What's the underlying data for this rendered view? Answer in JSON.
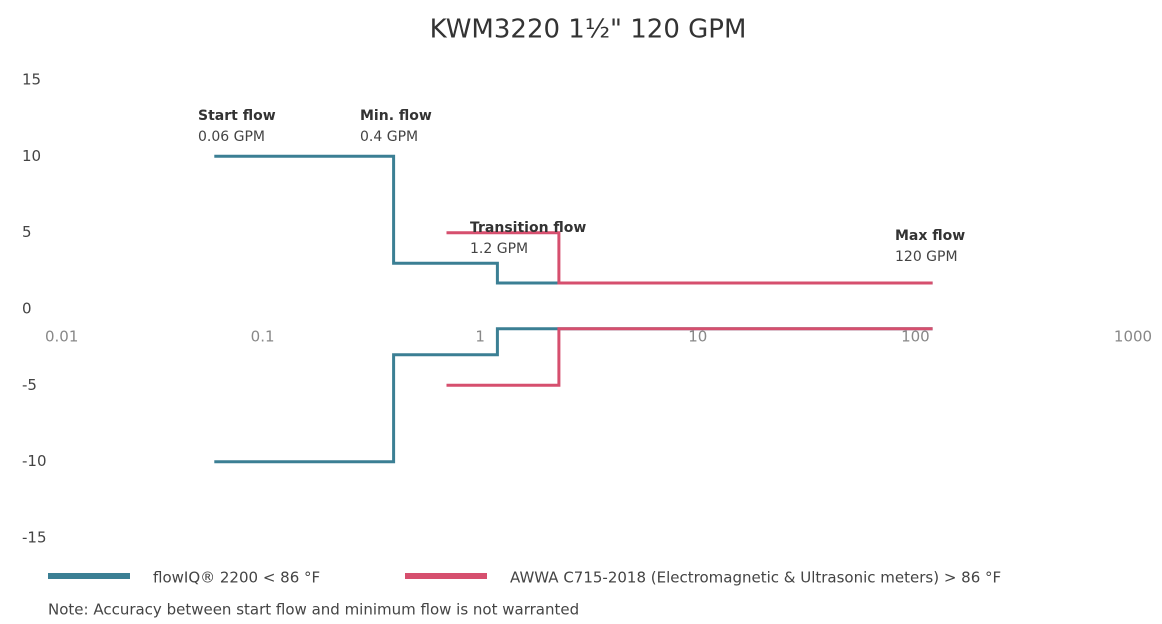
{
  "chart_data": {
    "type": "line",
    "title": "KWM3220 1½\" 120 GPM",
    "xscale": "log",
    "xlim": [
      0.01,
      1000
    ],
    "xticks": [
      {
        "value": 0.01,
        "label": "0.01"
      },
      0.1,
      1,
      10,
      100,
      1000
    ],
    "ylim": [
      -15,
      15
    ],
    "yticks": [
      15,
      10,
      5,
      0,
      -5,
      -10,
      -15
    ],
    "grid": false,
    "series": [
      {
        "name": "flowIQ® 2200 < 86 °F",
        "color": "#3b7f94",
        "x": [
          0.06,
          0.4,
          0.4,
          1.2,
          1.2,
          120,
          null,
          0.06,
          0.4,
          0.4,
          1.2,
          1.2,
          120
        ],
        "values": [
          10,
          10,
          3,
          3,
          1.7,
          1.7,
          null,
          -10,
          -10,
          -3,
          -3,
          -1.3,
          -1.3
        ]
      },
      {
        "name": "AWWA C715-2018 (Electromagnetic & Ultrasonic meters) > 86 °F",
        "color": "#d64f6e",
        "x": [
          0.7,
          2.3,
          2.3,
          120,
          null,
          0.7,
          2.3,
          2.3,
          120
        ],
        "values": [
          5,
          5,
          1.7,
          1.7,
          null,
          -5,
          -5,
          -1.3,
          -1.3
        ]
      }
    ],
    "annotations": [
      {
        "label": "Start flow",
        "text": "0.06 GPM"
      },
      {
        "label": "Min. flow",
        "text": "0.4 GPM"
      },
      {
        "label": "Transition flow",
        "text": "1.2 GPM"
      },
      {
        "label": "Max flow",
        "text": "120 GPM"
      }
    ],
    "note": "Note: Accuracy between start flow and minimum flow is not warranted"
  }
}
